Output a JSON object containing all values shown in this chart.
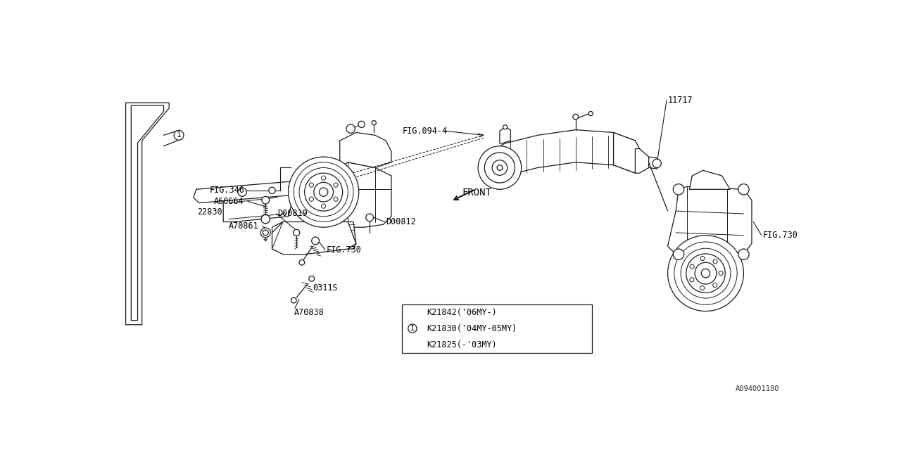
{
  "bg_color": "#ffffff",
  "line_color": "#1a1a1a",
  "diagram_id": "A094001180",
  "labels": {
    "fig094_4": "FIG.094-4",
    "fig346": "FIG.346",
    "fig730_left": "FIG.730",
    "fig730_right": "FIG.730",
    "a60664": "A60664",
    "d00819": "D00819",
    "a70861": "A70861",
    "d00812": "D00812",
    "part22830": "22830",
    "part0311s": "0311S",
    "a70838": "A70838",
    "front": "FRONT",
    "part11717": "11717"
  },
  "table_rows": [
    [
      "",
      "K21825(-'03MY)"
    ],
    [
      "1",
      "K21830('04MY-05MY)"
    ],
    [
      "",
      "K21842('06MY-)"
    ]
  ],
  "font_size": 8.5
}
